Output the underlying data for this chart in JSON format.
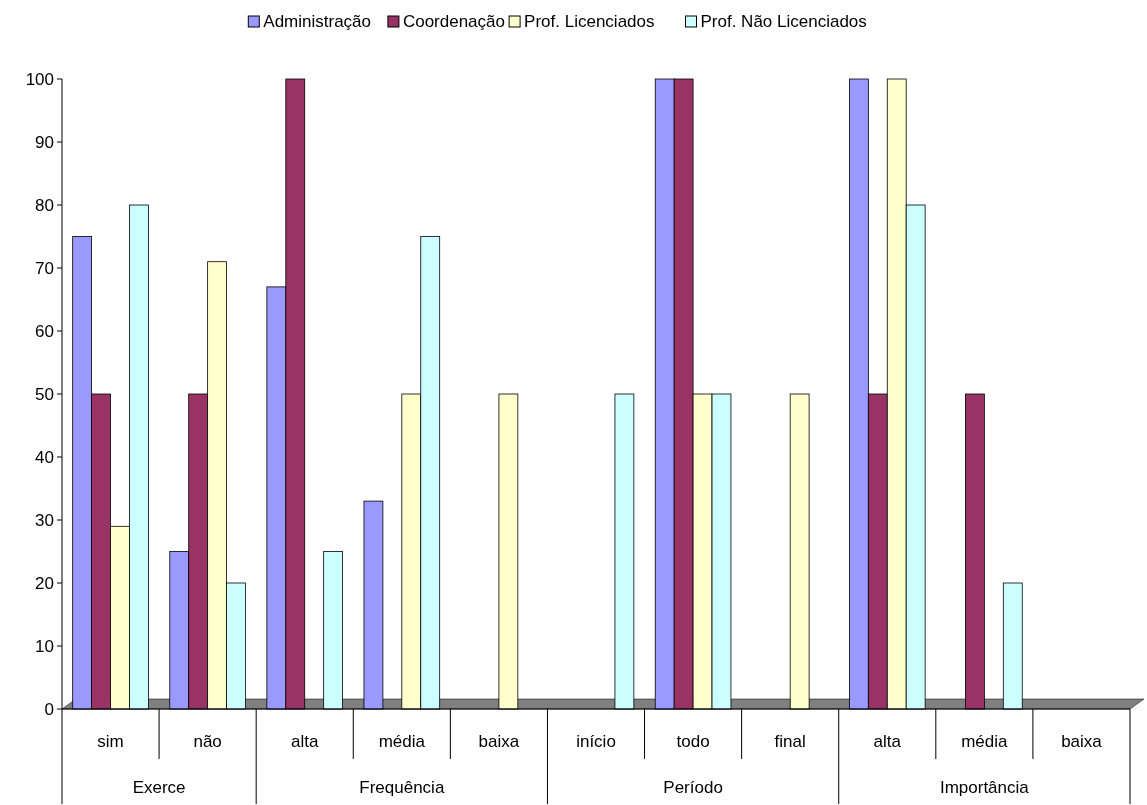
{
  "chart_data": {
    "type": "bar",
    "categories": [
      "sim",
      "não",
      "alta",
      "média",
      "baixa",
      "início",
      "todo",
      "final",
      "alta",
      "média",
      "baixa"
    ],
    "series": [
      {
        "name": "Administração",
        "color": "#9999ff",
        "values": [
          75,
          25,
          67,
          33,
          0,
          0,
          100,
          0,
          100,
          0,
          0
        ]
      },
      {
        "name": "Coordenação",
        "color": "#993366",
        "values": [
          50,
          50,
          100,
          0,
          0,
          0,
          100,
          0,
          50,
          50,
          0
        ]
      },
      {
        "name": "Prof. Licenciados",
        "color": "#ffffcc",
        "values": [
          29,
          71,
          0,
          50,
          50,
          0,
          50,
          50,
          100,
          0,
          0
        ]
      },
      {
        "name": "Prof. Não Licenciados",
        "color": "#ccffff",
        "values": [
          80,
          20,
          25,
          75,
          0,
          50,
          50,
          0,
          80,
          20,
          0
        ]
      }
    ],
    "ylim": [
      0,
      100
    ],
    "yticks": [
      0,
      10,
      20,
      30,
      40,
      50,
      60,
      70,
      80,
      90,
      100
    ],
    "grid": false,
    "legend": "top",
    "annotations": [
      "Exerce",
      "Frequência",
      "Período",
      "Importância"
    ]
  }
}
